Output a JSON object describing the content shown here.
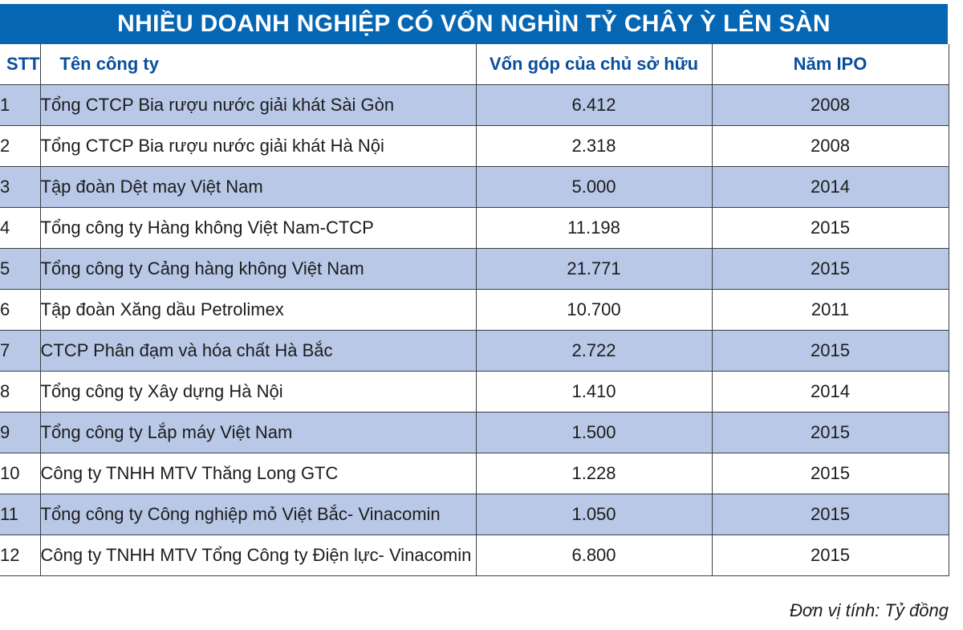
{
  "title": "NHIỀU DOANH NGHIỆP CÓ VỐN NGHÌN TỶ CHÂY Ỳ LÊN SÀN",
  "table": {
    "headers": {
      "stt": "STT",
      "name": "Tên công ty",
      "capital": "Vốn góp của chủ sở hữu",
      "ipo_year": "Năm IPO"
    },
    "rows": [
      {
        "stt": "1",
        "name": "Tổng CTCP Bia rượu nước giải khát Sài Gòn",
        "capital": "6.412",
        "ipo_year": "2008"
      },
      {
        "stt": "2",
        "name": "Tổng CTCP Bia rượu nước giải khát Hà Nội",
        "capital": "2.318",
        "ipo_year": "2008"
      },
      {
        "stt": "3",
        "name": "Tập đoàn Dệt may Việt Nam",
        "capital": "5.000",
        "ipo_year": "2014"
      },
      {
        "stt": "4",
        "name": "Tổng công ty Hàng không Việt Nam-CTCP",
        "capital": "11.198",
        "ipo_year": "2015"
      },
      {
        "stt": "5",
        "name": "Tổng công ty Cảng hàng không Việt Nam",
        "capital": "21.771",
        "ipo_year": "2015"
      },
      {
        "stt": "6",
        "name": "Tập đoàn Xăng dầu Petrolimex",
        "capital": "10.700",
        "ipo_year": "2011"
      },
      {
        "stt": "7",
        "name": "CTCP Phân đạm và hóa chất Hà Bắc",
        "capital": "2.722",
        "ipo_year": "2015"
      },
      {
        "stt": "8",
        "name": "Tổng công ty Xây dựng Hà Nội",
        "capital": "1.410",
        "ipo_year": "2014"
      },
      {
        "stt": "9",
        "name": "Tổng công ty Lắp máy Việt Nam",
        "capital": "1.500",
        "ipo_year": "2015"
      },
      {
        "stt": "10",
        "name": "Công ty TNHH MTV Thăng Long GTC",
        "capital": "1.228",
        "ipo_year": "2015"
      },
      {
        "stt": "11",
        "name": "Tổng công ty Công nghiệp mỏ Việt Bắc- Vinacomin",
        "capital": "1.050",
        "ipo_year": "2015"
      },
      {
        "stt": "12",
        "name": "Công ty TNHH MTV Tổng Công ty Điện lực- Vinacomin",
        "capital": "6.800",
        "ipo_year": "2015"
      }
    ]
  },
  "footnote": "Đơn vị tính: Tỷ đồng",
  "colors": {
    "title_bg": "#0566b4",
    "header_text": "#0a4f9c",
    "stripe": "#b8c8e6",
    "border": "#3a3f48"
  }
}
